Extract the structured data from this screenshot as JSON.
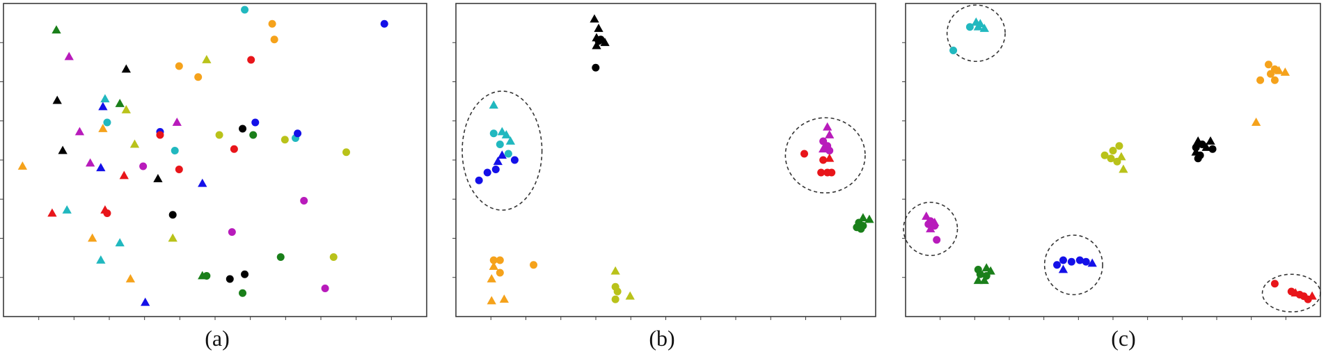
{
  "captions": [
    "(a)",
    "(b)",
    "(c)"
  ],
  "colors": {
    "green": "#1a7f1a",
    "magenta": "#b81bbb",
    "black": "#000000",
    "cyan": "#21b8bf",
    "blue": "#1410e8",
    "olive": "#b9c21a",
    "orange": "#f5a21b",
    "red": "#e8151a"
  },
  "chart_data": [
    {
      "type": "scatter",
      "title": "",
      "xlabel": "",
      "ylabel": "",
      "xlim": [
        0,
        100
      ],
      "ylim": [
        0,
        100
      ],
      "grid": false,
      "legend": "none",
      "points": [
        {
          "x": 12.5,
          "y": 91.5,
          "c": "green",
          "m": "tri"
        },
        {
          "x": 15.5,
          "y": 83,
          "c": "magenta",
          "m": "tri"
        },
        {
          "x": 29,
          "y": 79,
          "c": "black",
          "m": "tri"
        },
        {
          "x": 12.7,
          "y": 69,
          "c": "black",
          "m": "tri"
        },
        {
          "x": 24,
          "y": 69.5,
          "c": "cyan",
          "m": "tri"
        },
        {
          "x": 27.5,
          "y": 68,
          "c": "green",
          "m": "tri"
        },
        {
          "x": 29,
          "y": 66,
          "c": "olive",
          "m": "tri"
        },
        {
          "x": 23.5,
          "y": 67,
          "c": "blue",
          "m": "tri"
        },
        {
          "x": 24.5,
          "y": 62,
          "c": "cyan",
          "m": "dot"
        },
        {
          "x": 23.5,
          "y": 60,
          "c": "orange",
          "m": "tri"
        },
        {
          "x": 18,
          "y": 59,
          "c": "magenta",
          "m": "tri"
        },
        {
          "x": 31,
          "y": 55,
          "c": "olive",
          "m": "tri"
        },
        {
          "x": 14,
          "y": 53,
          "c": "black",
          "m": "tri"
        },
        {
          "x": 4.5,
          "y": 48,
          "c": "orange",
          "m": "tri"
        },
        {
          "x": 20.5,
          "y": 49,
          "c": "magenta",
          "m": "tri"
        },
        {
          "x": 23,
          "y": 47.5,
          "c": "blue",
          "m": "tri"
        },
        {
          "x": 28.5,
          "y": 45,
          "c": "red",
          "m": "tri"
        },
        {
          "x": 33,
          "y": 48,
          "c": "magenta",
          "m": "dot"
        },
        {
          "x": 37,
          "y": 59,
          "c": "blue",
          "m": "dot"
        },
        {
          "x": 37,
          "y": 58,
          "c": "red",
          "m": "dot"
        },
        {
          "x": 41,
          "y": 62,
          "c": "magenta",
          "m": "tri"
        },
        {
          "x": 40.5,
          "y": 53,
          "c": "cyan",
          "m": "dot"
        },
        {
          "x": 41.5,
          "y": 47,
          "c": "red",
          "m": "dot"
        },
        {
          "x": 36.5,
          "y": 44,
          "c": "black",
          "m": "tri"
        },
        {
          "x": 47,
          "y": 42.5,
          "c": "blue",
          "m": "tri"
        },
        {
          "x": 11.5,
          "y": 33,
          "c": "red",
          "m": "tri"
        },
        {
          "x": 15,
          "y": 34,
          "c": "cyan",
          "m": "tri"
        },
        {
          "x": 24,
          "y": 34,
          "c": "red",
          "m": "tri"
        },
        {
          "x": 24.5,
          "y": 33,
          "c": "red",
          "m": "dot"
        },
        {
          "x": 40,
          "y": 32.5,
          "c": "black",
          "m": "dot"
        },
        {
          "x": 21,
          "y": 25,
          "c": "orange",
          "m": "tri"
        },
        {
          "x": 27.5,
          "y": 23.5,
          "c": "cyan",
          "m": "tri"
        },
        {
          "x": 40,
          "y": 25,
          "c": "olive",
          "m": "tri"
        },
        {
          "x": 23,
          "y": 18,
          "c": "cyan",
          "m": "tri"
        },
        {
          "x": 30,
          "y": 12,
          "c": "orange",
          "m": "tri"
        },
        {
          "x": 33.5,
          "y": 4.5,
          "c": "blue",
          "m": "tri"
        },
        {
          "x": 41.5,
          "y": 80,
          "c": "orange",
          "m": "dot"
        },
        {
          "x": 46,
          "y": 76.5,
          "c": "orange",
          "m": "dot"
        },
        {
          "x": 48,
          "y": 82,
          "c": "olive",
          "m": "tri"
        },
        {
          "x": 57,
          "y": 98,
          "c": "cyan",
          "m": "dot"
        },
        {
          "x": 63.5,
          "y": 93.5,
          "c": "orange",
          "m": "dot"
        },
        {
          "x": 64,
          "y": 88.5,
          "c": "orange",
          "m": "dot"
        },
        {
          "x": 90,
          "y": 93.5,
          "c": "blue",
          "m": "dot"
        },
        {
          "x": 58.5,
          "y": 82,
          "c": "red",
          "m": "dot"
        },
        {
          "x": 59.5,
          "y": 62,
          "c": "blue",
          "m": "dot"
        },
        {
          "x": 56.5,
          "y": 60,
          "c": "black",
          "m": "dot"
        },
        {
          "x": 59,
          "y": 58,
          "c": "green",
          "m": "dot"
        },
        {
          "x": 51,
          "y": 58,
          "c": "olive",
          "m": "dot"
        },
        {
          "x": 66.5,
          "y": 56.5,
          "c": "olive",
          "m": "dot"
        },
        {
          "x": 69,
          "y": 57,
          "c": "cyan",
          "m": "dot"
        },
        {
          "x": 69.5,
          "y": 58.5,
          "c": "blue",
          "m": "dot"
        },
        {
          "x": 54.5,
          "y": 53.5,
          "c": "red",
          "m": "dot"
        },
        {
          "x": 81,
          "y": 52.5,
          "c": "olive",
          "m": "dot"
        },
        {
          "x": 71,
          "y": 37,
          "c": "magenta",
          "m": "dot"
        },
        {
          "x": 54,
          "y": 27,
          "c": "magenta",
          "m": "dot"
        },
        {
          "x": 65.5,
          "y": 19,
          "c": "green",
          "m": "dot"
        },
        {
          "x": 78,
          "y": 19,
          "c": "olive",
          "m": "dot"
        },
        {
          "x": 47,
          "y": 13,
          "c": "green",
          "m": "tri"
        },
        {
          "x": 48,
          "y": 13,
          "c": "green",
          "m": "dot"
        },
        {
          "x": 53.5,
          "y": 12,
          "c": "black",
          "m": "dot"
        },
        {
          "x": 57,
          "y": 13.5,
          "c": "black",
          "m": "dot"
        },
        {
          "x": 56.5,
          "y": 7.5,
          "c": "green",
          "m": "dot"
        },
        {
          "x": 76,
          "y": 9,
          "c": "magenta",
          "m": "dot"
        }
      ]
    },
    {
      "type": "scatter",
      "title": "",
      "xlabel": "",
      "ylabel": "",
      "xlim": [
        0,
        100
      ],
      "ylim": [
        0,
        100
      ],
      "grid": false,
      "legend": "none",
      "points": [
        {
          "x": 33,
          "y": 95,
          "c": "black",
          "m": "tri"
        },
        {
          "x": 34,
          "y": 92,
          "c": "black",
          "m": "tri"
        },
        {
          "x": 33.5,
          "y": 89,
          "c": "black",
          "m": "tri"
        },
        {
          "x": 34.5,
          "y": 88.5,
          "c": "black",
          "m": "dot"
        },
        {
          "x": 35.5,
          "y": 87.5,
          "c": "black",
          "m": "tri"
        },
        {
          "x": 33.5,
          "y": 86.5,
          "c": "black",
          "m": "tri"
        },
        {
          "x": 34,
          "y": 88,
          "c": "black",
          "m": "dot"
        },
        {
          "x": 33.3,
          "y": 79.5,
          "c": "black",
          "m": "dot"
        },
        {
          "x": 9,
          "y": 67.5,
          "c": "cyan",
          "m": "tri"
        },
        {
          "x": 9,
          "y": 58.5,
          "c": "cyan",
          "m": "dot"
        },
        {
          "x": 11,
          "y": 59,
          "c": "cyan",
          "m": "tri"
        },
        {
          "x": 12,
          "y": 58,
          "c": "cyan",
          "m": "tri"
        },
        {
          "x": 10.5,
          "y": 55,
          "c": "cyan",
          "m": "dot"
        },
        {
          "x": 13,
          "y": 56,
          "c": "cyan",
          "m": "tri"
        },
        {
          "x": 12.5,
          "y": 52,
          "c": "cyan",
          "m": "dot"
        },
        {
          "x": 11,
          "y": 51.5,
          "c": "blue",
          "m": "tri"
        },
        {
          "x": 10,
          "y": 49.5,
          "c": "blue",
          "m": "tri"
        },
        {
          "x": 14,
          "y": 50,
          "c": "blue",
          "m": "dot"
        },
        {
          "x": 9.5,
          "y": 47,
          "c": "blue",
          "m": "dot"
        },
        {
          "x": 7.5,
          "y": 46,
          "c": "blue",
          "m": "dot"
        },
        {
          "x": 5.5,
          "y": 43.5,
          "c": "blue",
          "m": "dot"
        },
        {
          "x": 88.5,
          "y": 60.5,
          "c": "magenta",
          "m": "tri"
        },
        {
          "x": 89,
          "y": 58,
          "c": "magenta",
          "m": "tri"
        },
        {
          "x": 87.5,
          "y": 56,
          "c": "magenta",
          "m": "dot"
        },
        {
          "x": 88.5,
          "y": 54.5,
          "c": "magenta",
          "m": "dot"
        },
        {
          "x": 87.5,
          "y": 53.5,
          "c": "magenta",
          "m": "tri"
        },
        {
          "x": 89,
          "y": 53,
          "c": "magenta",
          "m": "dot"
        },
        {
          "x": 83,
          "y": 52,
          "c": "red",
          "m": "dot"
        },
        {
          "x": 87.5,
          "y": 50,
          "c": "red",
          "m": "dot"
        },
        {
          "x": 89,
          "y": 50.5,
          "c": "red",
          "m": "tri"
        },
        {
          "x": 87,
          "y": 46,
          "c": "red",
          "m": "dot"
        },
        {
          "x": 88.5,
          "y": 46,
          "c": "red",
          "m": "dot"
        },
        {
          "x": 89.5,
          "y": 46,
          "c": "red",
          "m": "dot"
        },
        {
          "x": 97,
          "y": 31.5,
          "c": "green",
          "m": "tri"
        },
        {
          "x": 98.5,
          "y": 31,
          "c": "green",
          "m": "tri"
        },
        {
          "x": 96,
          "y": 30,
          "c": "green",
          "m": "dot"
        },
        {
          "x": 97,
          "y": 29,
          "c": "green",
          "m": "dot"
        },
        {
          "x": 95.5,
          "y": 28.5,
          "c": "green",
          "m": "dot"
        },
        {
          "x": 96.5,
          "y": 28,
          "c": "green",
          "m": "dot"
        },
        {
          "x": 9,
          "y": 18,
          "c": "orange",
          "m": "dot"
        },
        {
          "x": 10.5,
          "y": 18,
          "c": "orange",
          "m": "dot"
        },
        {
          "x": 9,
          "y": 16,
          "c": "orange",
          "m": "tri"
        },
        {
          "x": 18.5,
          "y": 16.5,
          "c": "orange",
          "m": "dot"
        },
        {
          "x": 10.5,
          "y": 14,
          "c": "orange",
          "m": "dot"
        },
        {
          "x": 8.5,
          "y": 12,
          "c": "orange",
          "m": "tri"
        },
        {
          "x": 8.5,
          "y": 5,
          "c": "orange",
          "m": "tri"
        },
        {
          "x": 11.5,
          "y": 5.5,
          "c": "orange",
          "m": "tri"
        },
        {
          "x": 38,
          "y": 14.5,
          "c": "olive",
          "m": "tri"
        },
        {
          "x": 38,
          "y": 9.5,
          "c": "olive",
          "m": "dot"
        },
        {
          "x": 38.5,
          "y": 8,
          "c": "olive",
          "m": "dot"
        },
        {
          "x": 41.5,
          "y": 6.5,
          "c": "olive",
          "m": "tri"
        },
        {
          "x": 38,
          "y": 5.5,
          "c": "olive",
          "m": "dot"
        }
      ],
      "clusters_circled": [
        {
          "cx": 11,
          "cy": 53,
          "rx": 9.5,
          "ry": 19
        },
        {
          "cx": 88,
          "cy": 51.5,
          "rx": 9.5,
          "ry": 12
        }
      ]
    },
    {
      "type": "scatter",
      "title": "",
      "xlabel": "",
      "ylabel": "",
      "xlim": [
        0,
        100
      ],
      "ylim": [
        0,
        100
      ],
      "grid": false,
      "legend": "none",
      "points": [
        {
          "x": 17,
          "y": 94,
          "c": "cyan",
          "m": "tri"
        },
        {
          "x": 18,
          "y": 93.5,
          "c": "cyan",
          "m": "tri"
        },
        {
          "x": 15.5,
          "y": 92.5,
          "c": "cyan",
          "m": "dot"
        },
        {
          "x": 17.5,
          "y": 92.5,
          "c": "cyan",
          "m": "tri"
        },
        {
          "x": 19,
          "y": 92,
          "c": "cyan",
          "m": "tri"
        },
        {
          "x": 11.5,
          "y": 85,
          "c": "cyan",
          "m": "dot"
        },
        {
          "x": 87.5,
          "y": 80.5,
          "c": "orange",
          "m": "dot"
        },
        {
          "x": 89,
          "y": 79,
          "c": "orange",
          "m": "dot"
        },
        {
          "x": 90,
          "y": 78.5,
          "c": "orange",
          "m": "tri"
        },
        {
          "x": 91.5,
          "y": 78,
          "c": "orange",
          "m": "tri"
        },
        {
          "x": 88,
          "y": 77.5,
          "c": "orange",
          "m": "dot"
        },
        {
          "x": 85.5,
          "y": 75.5,
          "c": "orange",
          "m": "dot"
        },
        {
          "x": 89,
          "y": 75.5,
          "c": "orange",
          "m": "dot"
        },
        {
          "x": 84.5,
          "y": 62,
          "c": "orange",
          "m": "tri"
        },
        {
          "x": 70.5,
          "y": 56,
          "c": "black",
          "m": "tri"
        },
        {
          "x": 73.5,
          "y": 56,
          "c": "black",
          "m": "tri"
        },
        {
          "x": 71.5,
          "y": 55,
          "c": "black",
          "m": "dot"
        },
        {
          "x": 70,
          "y": 54,
          "c": "black",
          "m": "dot"
        },
        {
          "x": 72.5,
          "y": 54,
          "c": "black",
          "m": "tri"
        },
        {
          "x": 74,
          "y": 53.5,
          "c": "black",
          "m": "dot"
        },
        {
          "x": 70,
          "y": 52.5,
          "c": "black",
          "m": "tri"
        },
        {
          "x": 71,
          "y": 51.5,
          "c": "black",
          "m": "dot"
        },
        {
          "x": 70.5,
          "y": 50.5,
          "c": "black",
          "m": "dot"
        },
        {
          "x": 51.5,
          "y": 54.5,
          "c": "olive",
          "m": "dot"
        },
        {
          "x": 50,
          "y": 53,
          "c": "olive",
          "m": "dot"
        },
        {
          "x": 48,
          "y": 51.5,
          "c": "olive",
          "m": "dot"
        },
        {
          "x": 52,
          "y": 51,
          "c": "olive",
          "m": "tri"
        },
        {
          "x": 49.5,
          "y": 50.5,
          "c": "olive",
          "m": "dot"
        },
        {
          "x": 51,
          "y": 49.5,
          "c": "olive",
          "m": "dot"
        },
        {
          "x": 52.5,
          "y": 47,
          "c": "olive",
          "m": "tri"
        },
        {
          "x": 5,
          "y": 32,
          "c": "magenta",
          "m": "tri"
        },
        {
          "x": 6,
          "y": 30.5,
          "c": "magenta",
          "m": "dot"
        },
        {
          "x": 7,
          "y": 30,
          "c": "magenta",
          "m": "tri"
        },
        {
          "x": 5.5,
          "y": 29.5,
          "c": "magenta",
          "m": "dot"
        },
        {
          "x": 7,
          "y": 29,
          "c": "magenta",
          "m": "dot"
        },
        {
          "x": 6,
          "y": 28,
          "c": "magenta",
          "m": "tri"
        },
        {
          "x": 7.5,
          "y": 24.5,
          "c": "magenta",
          "m": "dot"
        },
        {
          "x": 19.5,
          "y": 15.5,
          "c": "green",
          "m": "tri"
        },
        {
          "x": 17.5,
          "y": 15,
          "c": "green",
          "m": "dot"
        },
        {
          "x": 20.5,
          "y": 14.5,
          "c": "green",
          "m": "tri"
        },
        {
          "x": 18,
          "y": 13.5,
          "c": "green",
          "m": "dot"
        },
        {
          "x": 19.5,
          "y": 13,
          "c": "green",
          "m": "dot"
        },
        {
          "x": 17.5,
          "y": 11.5,
          "c": "green",
          "m": "tri"
        },
        {
          "x": 19,
          "y": 11.5,
          "c": "green",
          "m": "tri"
        },
        {
          "x": 38,
          "y": 18,
          "c": "blue",
          "m": "dot"
        },
        {
          "x": 40,
          "y": 17.5,
          "c": "blue",
          "m": "dot"
        },
        {
          "x": 42,
          "y": 18,
          "c": "blue",
          "m": "dot"
        },
        {
          "x": 43.5,
          "y": 17.5,
          "c": "blue",
          "m": "dot"
        },
        {
          "x": 45,
          "y": 17,
          "c": "blue",
          "m": "tri"
        },
        {
          "x": 36.5,
          "y": 16.5,
          "c": "blue",
          "m": "dot"
        },
        {
          "x": 38,
          "y": 15,
          "c": "blue",
          "m": "tri"
        },
        {
          "x": 89,
          "y": 10.5,
          "c": "red",
          "m": "dot"
        },
        {
          "x": 93,
          "y": 8,
          "c": "red",
          "m": "dot"
        },
        {
          "x": 94,
          "y": 7.5,
          "c": "red",
          "m": "tri"
        },
        {
          "x": 95,
          "y": 7,
          "c": "red",
          "m": "dot"
        },
        {
          "x": 96,
          "y": 6.5,
          "c": "red",
          "m": "dot"
        },
        {
          "x": 97,
          "y": 5.5,
          "c": "red",
          "m": "dot"
        },
        {
          "x": 98,
          "y": 6.5,
          "c": "red",
          "m": "tri"
        }
      ],
      "clusters_circled": [
        {
          "cx": 17,
          "cy": 90.5,
          "rx": 7,
          "ry": 9
        },
        {
          "cx": 6,
          "cy": 28,
          "rx": 6.5,
          "ry": 8.5
        },
        {
          "cx": 40.5,
          "cy": 16.5,
          "rx": 7,
          "ry": 9.5
        },
        {
          "cx": 93,
          "cy": 7.5,
          "rx": 7,
          "ry": 6
        }
      ]
    }
  ]
}
